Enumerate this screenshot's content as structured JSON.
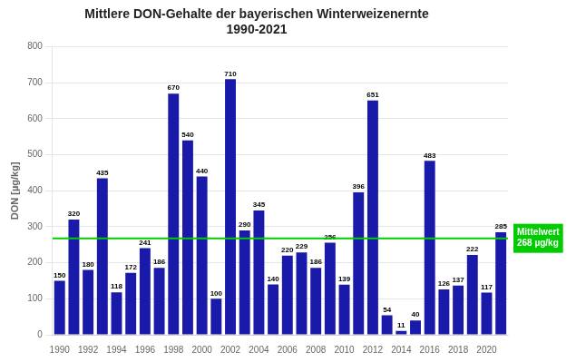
{
  "chart_data": {
    "type": "bar",
    "title": "Mittlere DON-Gehalte der bayerischen Winterweizenernte\n1990-2021",
    "y_label": "DON [µg/kg]",
    "categories": [
      "1990",
      null,
      "1992",
      null,
      "1994",
      null,
      "1996",
      null,
      "1998",
      null,
      "2000",
      null,
      "2002",
      null,
      "2004",
      null,
      "2006",
      null,
      "2008",
      null,
      "2010",
      null,
      "2012",
      null,
      "2014",
      null,
      "2016",
      null,
      "2018",
      null,
      "2020",
      null
    ],
    "values": [
      150,
      320,
      180,
      435,
      118,
      172,
      241,
      186,
      670,
      540,
      440,
      100,
      710,
      290,
      345,
      140,
      220,
      229,
      186,
      256,
      139,
      396,
      651,
      54,
      11,
      40,
      483,
      126,
      137,
      222,
      117,
      285
    ],
    "color": "#1a1aaa",
    "data_labels": true,
    "ylim": [
      0,
      800
    ],
    "yticks": [
      0,
      100,
      200,
      300,
      400,
      500,
      600,
      700,
      800
    ],
    "grid": true,
    "annotations": [
      {
        "type": "hline",
        "y": 268,
        "text": "Mittelwert\n268 µg/kg",
        "color": "#00cc00"
      }
    ]
  }
}
